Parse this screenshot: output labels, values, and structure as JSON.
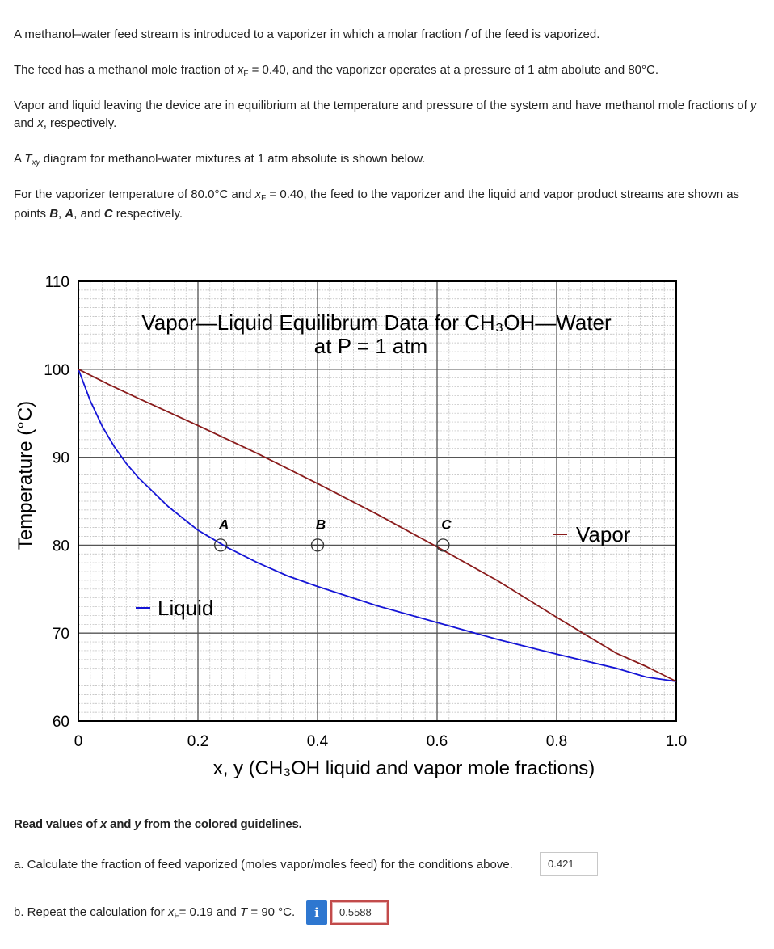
{
  "text": {
    "p1_a": "A methanol–water feed stream is introduced to a vaporizer in which a molar fraction ",
    "p1_f": "f",
    "p1_b": " of the feed is vaporized.",
    "p2_a": "The feed has a methanol mole fraction of ",
    "p2_x": "x",
    "p2_sub": "F",
    "p2_b": " = 0.40, and the vaporizer operates at a pressure of 1 atm abolute and 80°C.",
    "p3_a": "Vapor and liquid leaving the device are in equilibrium at the temperature and pressure of the system and have methanol mole fractions of ",
    "p3_y": "y",
    "p3_and": " and ",
    "p3_x": "x",
    "p3_b": ", respectively.",
    "p4_a": "A ",
    "p4_t": "T",
    "p4_sub": "xy",
    "p4_b": " diagram for methanol-water mixtures at 1 atm absolute is shown below.",
    "p5_a": "For the vaporizer temperature of 80.0°C and ",
    "p5_x": "x",
    "p5_sub": "F",
    "p5_b": " = 0.40, the feed to the vaporizer and the liquid and vapor product streams are shown as points ",
    "p5_B": "B",
    "p5_c1": ", ",
    "p5_A": "A",
    "p5_c2": ", and ",
    "p5_C": "C",
    "p5_e": " respectively.",
    "read_a": "Read values of ",
    "read_x": "x",
    "read_and": " and ",
    "read_y": "y",
    "read_b": " from the colored guidelines.",
    "qa": "a. Calculate the fraction of feed vaporized (moles vapor/moles feed) for the conditions above.",
    "qb_a": "b. Repeat the calculation for ",
    "qb_x": "x",
    "qb_sub": "F",
    "qb_b": "= 0.19 and ",
    "qb_t": "T",
    "qb_c": " = 90 °C.",
    "info_icon": "i",
    "answer_a": "0.421",
    "answer_b": "0.5588"
  },
  "chart_data": {
    "type": "line",
    "title": "Vapor—Liquid Equilibrum Data for CH₃OH—Water",
    "subtitle": "at P = 1 atm",
    "xlabel": "x, y (CH₃OH liquid and vapor mole fractions)",
    "ylabel": "Temperature (°C)",
    "xlim": [
      0,
      1.0
    ],
    "ylim": [
      60,
      110
    ],
    "x_ticks": [
      "0",
      "0.2",
      "0.4",
      "0.6",
      "0.8",
      "1.0"
    ],
    "y_ticks": [
      "60",
      "70",
      "80",
      "90",
      "100",
      "110"
    ],
    "grid": true,
    "series": [
      {
        "name": "Liquid",
        "color": "#1515d6",
        "points": [
          [
            0,
            100
          ],
          [
            0.02,
            96.4
          ],
          [
            0.04,
            93.5
          ],
          [
            0.06,
            91.2
          ],
          [
            0.08,
            89.3
          ],
          [
            0.1,
            87.7
          ],
          [
            0.15,
            84.4
          ],
          [
            0.2,
            81.7
          ],
          [
            0.25,
            79.7
          ],
          [
            0.3,
            78.0
          ],
          [
            0.35,
            76.5
          ],
          [
            0.4,
            75.3
          ],
          [
            0.5,
            73.1
          ],
          [
            0.6,
            71.2
          ],
          [
            0.7,
            69.3
          ],
          [
            0.8,
            67.6
          ],
          [
            0.9,
            66.0
          ],
          [
            0.95,
            65.0
          ],
          [
            1.0,
            64.5
          ]
        ]
      },
      {
        "name": "Vapor",
        "color": "#8a1c1c",
        "points": [
          [
            0,
            100
          ],
          [
            0.05,
            98.3
          ],
          [
            0.1,
            96.7
          ],
          [
            0.2,
            93.6
          ],
          [
            0.3,
            90.4
          ],
          [
            0.4,
            87.0
          ],
          [
            0.5,
            83.5
          ],
          [
            0.6,
            79.8
          ],
          [
            0.7,
            76.0
          ],
          [
            0.8,
            71.8
          ],
          [
            0.9,
            67.7
          ],
          [
            0.95,
            66.2
          ],
          [
            1.0,
            64.5
          ]
        ]
      }
    ],
    "points": [
      {
        "label": "A",
        "x": 0.238,
        "y": 80
      },
      {
        "label": "B",
        "x": 0.4,
        "y": 80
      },
      {
        "label": "C",
        "x": 0.61,
        "y": 80
      }
    ]
  }
}
